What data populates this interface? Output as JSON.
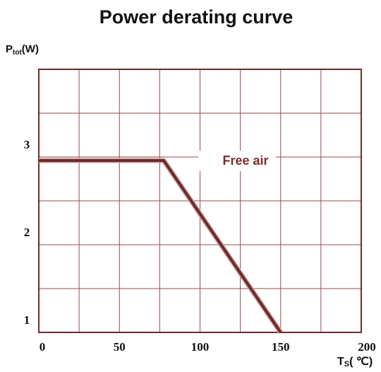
{
  "chart_data": {
    "type": "line",
    "title": "Power derating curve",
    "ylabel": {
      "main": "P",
      "sub": "tot",
      "unit": "(W)"
    },
    "xlabel": {
      "main": "T",
      "sub": "S",
      "unit": "( ℃)"
    },
    "x": [
      0,
      77.5,
      150
    ],
    "series": [
      {
        "name": "Free air",
        "color": "#6e2b2b",
        "values": [
          2.96,
          2.96,
          1
        ]
      }
    ],
    "xlim": [
      0,
      200
    ],
    "xticks": [
      0,
      50,
      100,
      150,
      200
    ],
    "ylim": [
      1,
      4
    ],
    "yticks": [
      1,
      2,
      3
    ],
    "xgrid": [
      0,
      25,
      50,
      75,
      100,
      125,
      150,
      175,
      200
    ],
    "ygrid": [
      1,
      1.5,
      2,
      2.5,
      3,
      3.5,
      4
    ],
    "grid_color": "#9a4a4a"
  }
}
